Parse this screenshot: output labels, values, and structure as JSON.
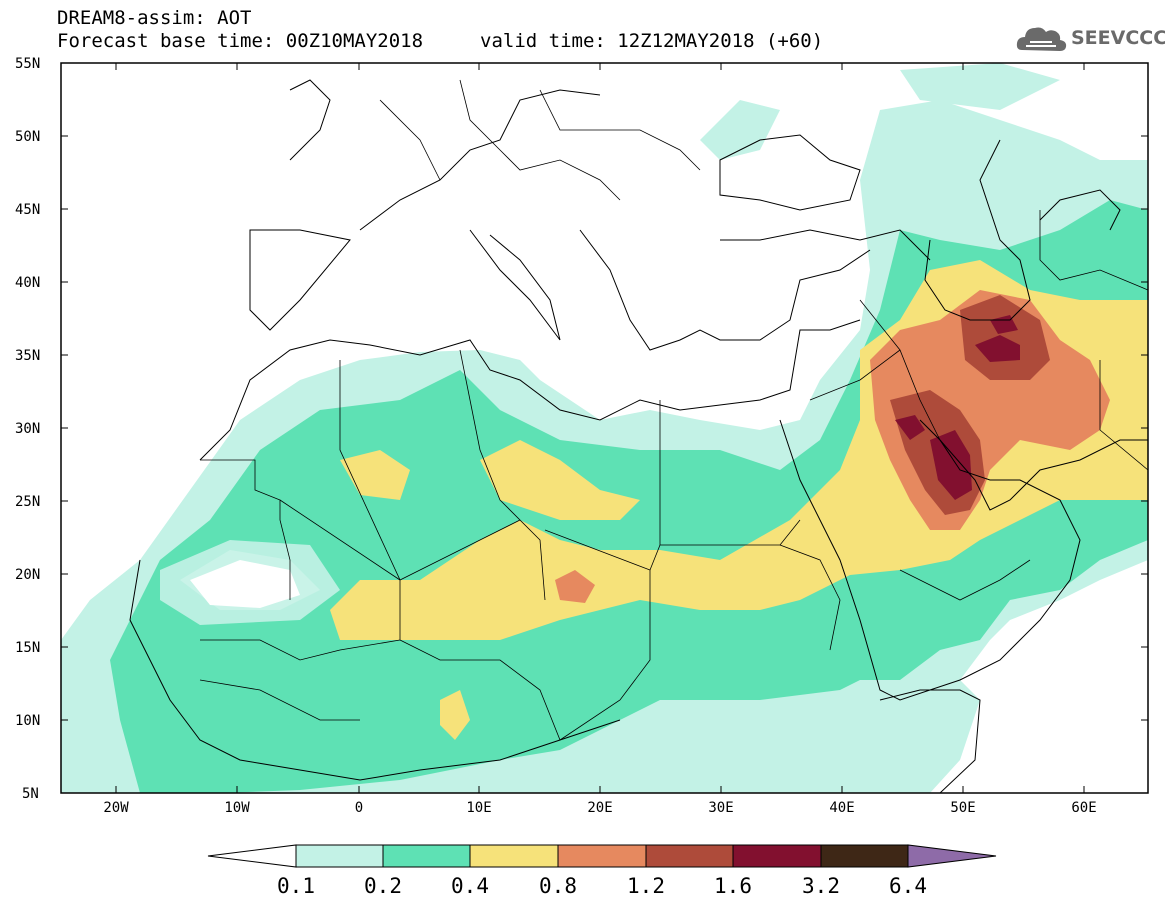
{
  "header": {
    "title": "DREAM8-assim: AOT",
    "base_time": "Forecast base time: 00Z10MAY2018",
    "valid_time": "valid time: 12Z12MAY2018 (+60)"
  },
  "logo": {
    "text": "SEEVCCC",
    "icon": "cloud-icon"
  },
  "map": {
    "lon_range": [
      -25,
      65
    ],
    "lat_range": [
      5,
      55
    ],
    "lat_ticks": [
      "55N",
      "50N",
      "45N",
      "40N",
      "35N",
      "30N",
      "25N",
      "20N",
      "15N",
      "10N",
      "5N"
    ],
    "lon_ticks": [
      "20W",
      "10W",
      "0",
      "10E",
      "20E",
      "30E",
      "40E",
      "50E",
      "60E"
    ]
  },
  "colorbar": {
    "labels": [
      "0.1",
      "0.2",
      "0.4",
      "0.8",
      "1.2",
      "1.6",
      "3.2",
      "6.4"
    ],
    "colors": [
      "#ffffff",
      "#c3f2e6",
      "#5ee1b4",
      "#f6e27a",
      "#e6895f",
      "#ae4b3a",
      "#82102f",
      "#3e2716",
      "#8e6ba8"
    ]
  }
}
